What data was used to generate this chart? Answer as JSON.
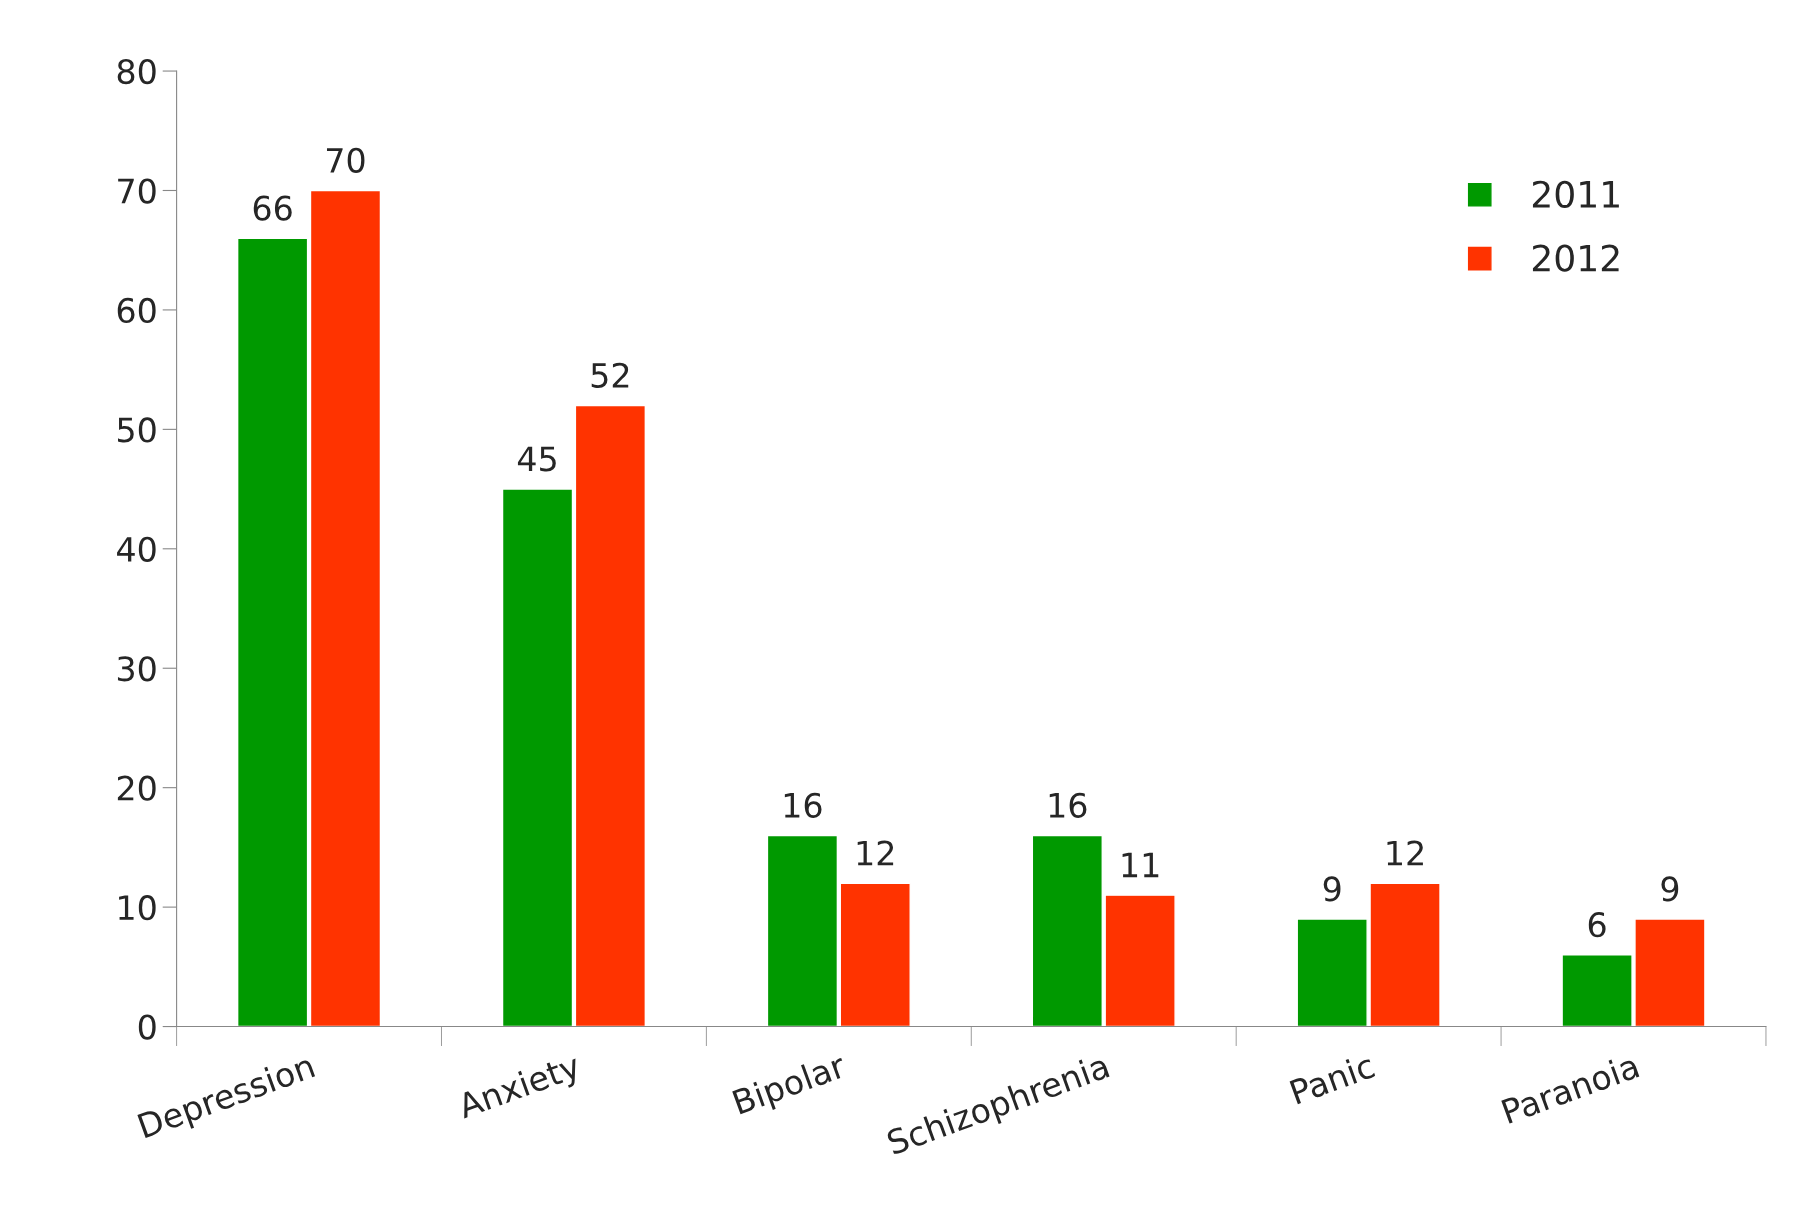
{
  "chart_data": {
    "type": "bar",
    "categories": [
      "Depression",
      "Anxiety",
      "Bipolar",
      "Schizophrenia",
      "Panic",
      "Paranoia"
    ],
    "series": [
      {
        "name": "2011",
        "color": "#009900",
        "values": [
          66,
          45,
          16,
          16,
          9,
          6
        ]
      },
      {
        "name": "2012",
        "color": "#ff3300",
        "values": [
          70,
          52,
          12,
          11,
          12,
          9
        ]
      }
    ],
    "ylim": [
      0,
      80
    ],
    "yticks": [
      0,
      10,
      20,
      30,
      40,
      50,
      60,
      70,
      80
    ],
    "data_labels": true,
    "grid": false,
    "legend": "top right"
  }
}
